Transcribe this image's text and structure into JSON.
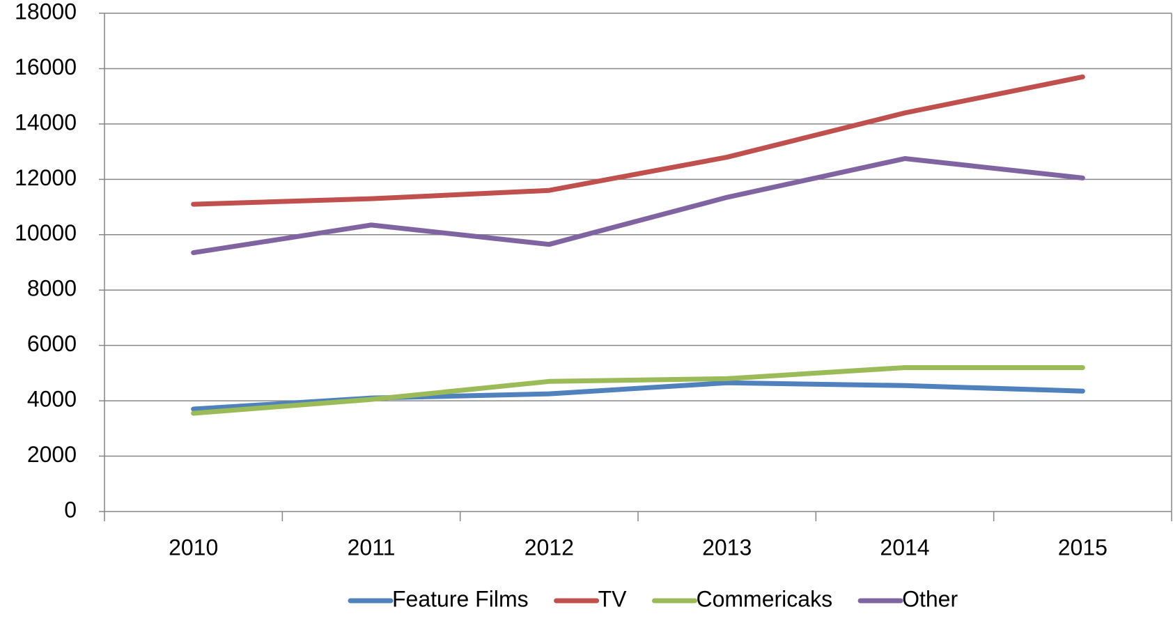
{
  "chart_data": {
    "type": "line",
    "categories": [
      "2010",
      "2011",
      "2012",
      "2013",
      "2014",
      "2015"
    ],
    "series": [
      {
        "name": "Feature Films",
        "color": "#4f81bd",
        "values": [
          3700,
          4100,
          4250,
          4650,
          4550,
          4350
        ]
      },
      {
        "name": "TV",
        "color": "#c0504d",
        "values": [
          11100,
          11300,
          11600,
          12800,
          14400,
          15700
        ]
      },
      {
        "name": "Commericaks",
        "color": "#9bbb59",
        "values": [
          3550,
          4050,
          4700,
          4800,
          5200,
          5200
        ]
      },
      {
        "name": "Other",
        "color": "#8064a2",
        "values": [
          9350,
          10350,
          9650,
          11350,
          12750,
          12050
        ]
      }
    ],
    "ylim": [
      0,
      18000
    ],
    "yticks": [
      0,
      2000,
      4000,
      6000,
      8000,
      10000,
      12000,
      14000,
      16000,
      18000
    ],
    "grid": true,
    "legend": "bottom"
  }
}
